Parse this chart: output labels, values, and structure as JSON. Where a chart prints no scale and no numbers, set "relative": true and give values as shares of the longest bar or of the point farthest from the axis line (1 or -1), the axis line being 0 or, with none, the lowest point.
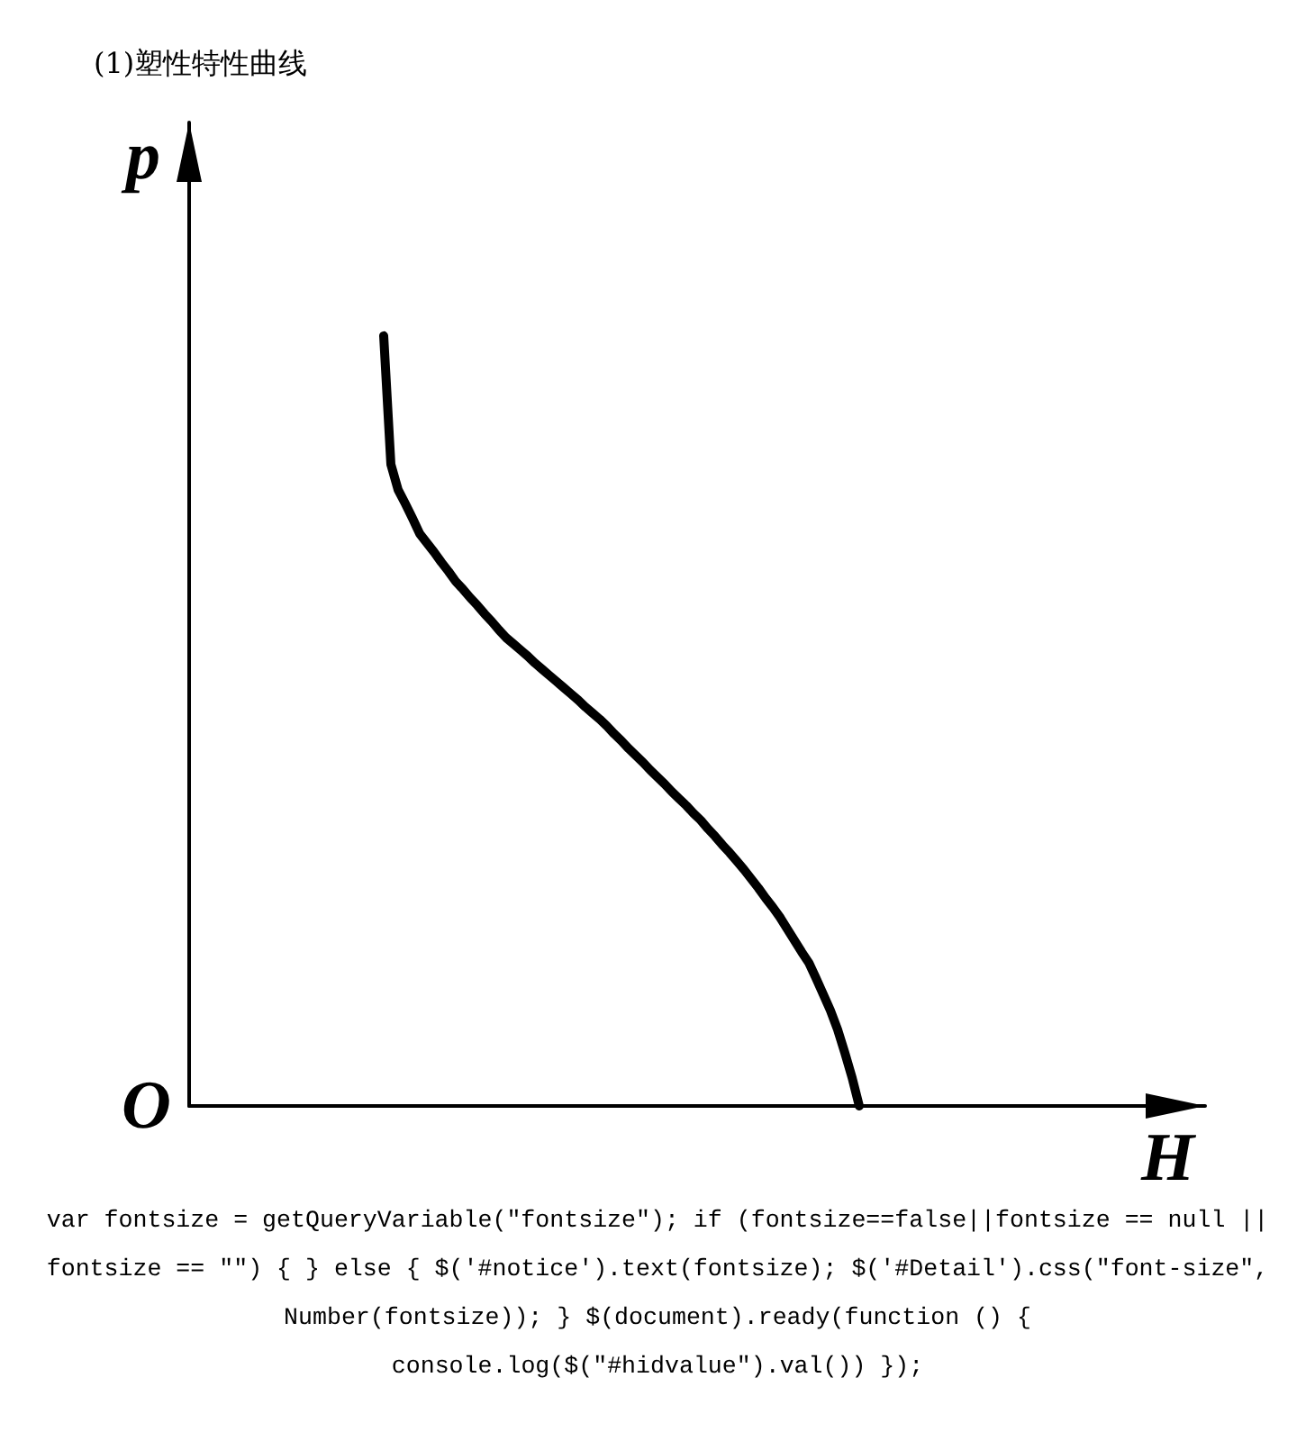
{
  "chart_data": {
    "type": "line",
    "title": "(1)塑性特性曲线",
    "xlabel": "H",
    "ylabel": "p",
    "annotations": [
      "O",
      "var fontsize = getQueryVariable(\"fontsize\"); if (fontsize==false||fontsize == null || fontsize == \"\") { } else { $('#notice').text(fontsize); $('#Detail').css(\"font-size\", Number(fontsize)); } $(document).ready(function () { console.log($(\"#hidvalue\").val()) });"
    ],
    "categories": [
      null,
      null,
      null,
      null,
      null,
      null,
      null,
      null,
      null,
      null,
      null,
      null,
      null,
      null,
      null,
      null,
      null,
      null,
      null,
      null,
      null,
      null,
      null,
      null,
      null,
      null,
      null,
      null,
      null,
      null,
      null,
      null,
      null,
      null,
      null,
      null,
      null,
      null,
      null,
      null,
      null,
      null,
      null,
      null,
      null,
      null,
      null,
      null,
      null,
      null,
      null,
      null,
      null,
      null,
      null,
      null,
      null,
      null,
      null,
      null,
      null,
      null,
      null,
      null,
      null,
      null,
      null,
      null,
      null,
      null,
      null,
      null,
      null,
      null,
      null,
      null,
      null,
      null,
      null,
      null,
      null,
      null,
      null,
      null,
      null,
      null,
      null,
      null,
      null,
      null,
      null,
      null,
      null,
      null,
      null,
      null,
      null,
      null,
      null,
      null,
      null,
      null,
      null,
      null,
      null,
      null,
      null,
      null,
      null,
      null,
      null,
      null,
      null,
      null,
      null,
      null,
      null,
      null,
      null,
      null,
      null,
      null,
      null,
      null,
      null,
      null,
      null,
      null,
      null,
      null,
      null,
      null,
      null,
      null,
      null,
      null,
      null,
      null,
      null,
      null,
      null,
      null
    ],
    "values": [
      null,
      null,
      null,
      null,
      null,
      null,
      null,
      null,
      null,
      null,
      null,
      null,
      null,
      null,
      null,
      null,
      null,
      null,
      null,
      null,
      null,
      null,
      null,
      null,
      null,
      null,
      null,
      1,
      0.833,
      0.8,
      0.782,
      0.763,
      0.743,
      0.731,
      0.719,
      0.706,
      0.694,
      0.681,
      0.671,
      0.66,
      0.65,
      0.639,
      0.629,
      0.618,
      0.608,
      0.6,
      0.592,
      0.584,
      0.575,
      0.567,
      0.559,
      0.551,
      0.543,
      0.535,
      0.527,
      0.518,
      0.51,
      0.502,
      0.493,
      0.483,
      0.474,
      0.464,
      0.455,
      0.446,
      0.436,
      0.427,
      0.418,
      0.408,
      0.399,
      0.39,
      0.38,
      0.371,
      0.36,
      0.35,
      0.339,
      0.329,
      0.318,
      0.307,
      0.295,
      0.283,
      0.27,
      0.258,
      0.245,
      0.23,
      0.215,
      0.2,
      0.186,
      0.166,
      0.145,
      0.124,
      0.099,
      0.069,
      0.037,
      0,
      null,
      null,
      null,
      null,
      null,
      null,
      null,
      null,
      null,
      null,
      null,
      null,
      null,
      null,
      null,
      null,
      null,
      null,
      null,
      null,
      null,
      null,
      null,
      null,
      null,
      null,
      null,
      null,
      null,
      null,
      null,
      null,
      null,
      null,
      null,
      null,
      null,
      null,
      null,
      null,
      null,
      null,
      null,
      null,
      null,
      null,
      null,
      null
    ],
    "color": "#000000",
    "relative": true,
    "marker": "none",
    "line_style": "solid"
  }
}
